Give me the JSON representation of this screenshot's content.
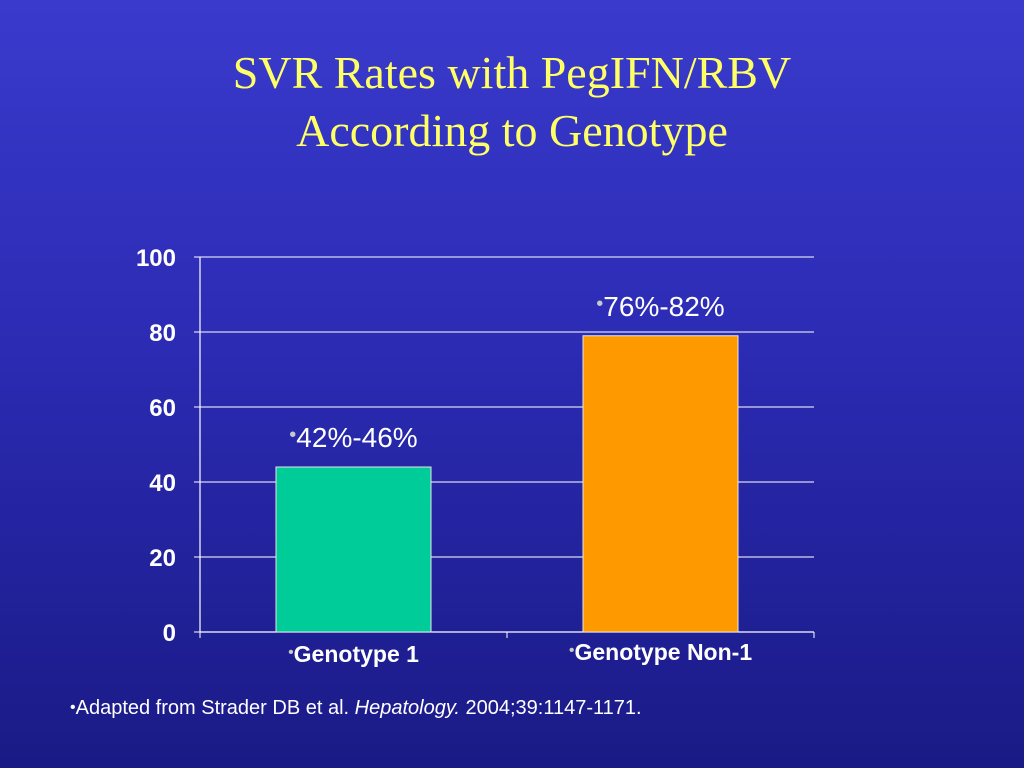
{
  "slide": {
    "title_line1": "SVR Rates with PegIFN/RBV",
    "title_line2": "According to Genotype",
    "citation": {
      "bullet": "•",
      "prefix": "Adapted from Strader DB et al. ",
      "journal": "Hepatology.",
      "suffix": " 2004;39:1147-1171."
    },
    "colors": {
      "title": "#ffff66",
      "background_top": "#3a3acd",
      "background_bottom": "#1a1a86"
    }
  },
  "chart_data": {
    "type": "bar",
    "categories": [
      "Genotype 1",
      "Genotype Non-1"
    ],
    "values": [
      44,
      79
    ],
    "data_labels": [
      "42%-46%",
      "76%-82%"
    ],
    "colors": [
      "#00cc99",
      "#ff9900"
    ],
    "ylim": [
      0,
      100
    ],
    "yticks": [
      0,
      20,
      40,
      60,
      80,
      100
    ],
    "grid": true,
    "bullet": "•"
  }
}
